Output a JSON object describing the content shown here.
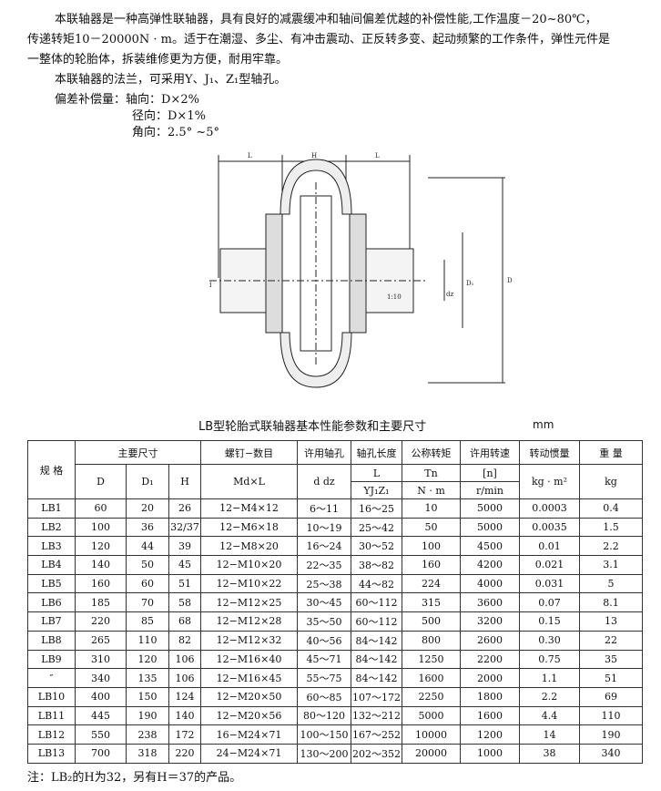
{
  "intro": {
    "lines": [
      "本联轴器是一种高弹性联轴器，具有良好的减震缓冲和轴间偏差优越的补偿性能,工作温度－20~80℃，",
      "传递转矩10－20000N · m。适于在潮湿、多尘、有冲击震动、正反转多变、起动频繁的工作条件，弹性元件是",
      "一整体的轮胎体，拆装维修更为方便，耐用牢靠。",
      "本联轴器的法兰，可采用Y、J₁、Z₁型轴孔。",
      "偏差补偿量：轴向：D×2%",
      "径向：D×1%",
      "角向：2.5° ~5°"
    ]
  },
  "drawing": {
    "labels": {
      "L": "L",
      "H": "H",
      "d": "d",
      "dz": "dz",
      "D1": "D₁",
      "D": "D",
      "taper": "1:10"
    }
  },
  "table": {
    "title": "LB型轮胎式联轴器基本性能参数和主要尺寸",
    "unit": "mm",
    "header": {
      "spec": "规 格",
      "main_dims": "主要尺寸",
      "D": "D",
      "D1": "D₁",
      "H": "H",
      "bolt": "螺钉−数目",
      "bolt_unit": "Md×L",
      "bore": "许用轴孔",
      "bore_unit": "d dz",
      "bore_len": "轴孔长度",
      "bore_len_sym": "L",
      "bore_len_unit": "YJ₁Z₁",
      "torque": "公称转矩",
      "torque_sym": "Tn",
      "torque_unit": "N · m",
      "speed": "许用转速",
      "speed_sym": "[n]",
      "speed_unit": "r/min",
      "inertia": "转动惯量",
      "inertia_unit": "kg · m²",
      "weight": "重 量",
      "weight_unit": "kg"
    },
    "rows": [
      [
        "LB1",
        "60",
        "20",
        "26",
        "12−M4×12",
        "6～11",
        "16～25",
        "10",
        "5000",
        "0.0003",
        "0.4"
      ],
      [
        "LB2",
        "100",
        "36",
        "32/37",
        "12−M6×18",
        "10～19",
        "25～42",
        "50",
        "5000",
        "0.0035",
        "1.5"
      ],
      [
        "LB3",
        "120",
        "44",
        "39",
        "12−M8×20",
        "16～24",
        "30～52",
        "100",
        "4500",
        "0.01",
        "2.2"
      ],
      [
        "LB4",
        "140",
        "50",
        "45",
        "12−M10×20",
        "22～35",
        "38～82",
        "160",
        "4200",
        "0.021",
        "3.1"
      ],
      [
        "LB5",
        "160",
        "60",
        "51",
        "12−M10×22",
        "25～38",
        "44～82",
        "224",
        "4000",
        "0.031",
        "5"
      ],
      [
        "LB6",
        "185",
        "70",
        "58",
        "12−M12×25",
        "30～45",
        "60～112",
        "315",
        "3600",
        "0.07",
        "8.1"
      ],
      [
        "LB7",
        "220",
        "85",
        "68",
        "12−M12×28",
        "35～50",
        "60～112",
        "500",
        "3200",
        "0.15",
        "13"
      ],
      [
        "LB8",
        "265",
        "110",
        "82",
        "12−M12×32",
        "40～56",
        "84～142",
        "800",
        "2600",
        "0.30",
        "22"
      ],
      [
        "LB9",
        "310",
        "120",
        "106",
        "12−M16×40",
        "45～71",
        "84～142",
        "1250",
        "2200",
        "0.75",
        "35"
      ],
      [
        "″",
        "340",
        "135",
        "106",
        "12−M16×45",
        "55～75",
        "84～142",
        "1600",
        "2000",
        "1.1",
        "51"
      ],
      [
        "LB10",
        "400",
        "150",
        "124",
        "12−M20×50",
        "60～85",
        "107～172",
        "2250",
        "1800",
        "2.2",
        "69"
      ],
      [
        "LB11",
        "445",
        "190",
        "140",
        "12−M20×56",
        "80～120",
        "132～212",
        "5000",
        "1600",
        "4.4",
        "110"
      ],
      [
        "LB12",
        "550",
        "238",
        "172",
        "16−M24×71",
        "100～150",
        "167～252",
        "10000",
        "1200",
        "14",
        "190"
      ],
      [
        "LB13",
        "700",
        "318",
        "220",
        "24−M24×71",
        "130～200",
        "202～352",
        "20000",
        "1000",
        "38",
        "340"
      ]
    ]
  },
  "note": "注：LB₂的H为32，另有H＝37的产品。"
}
